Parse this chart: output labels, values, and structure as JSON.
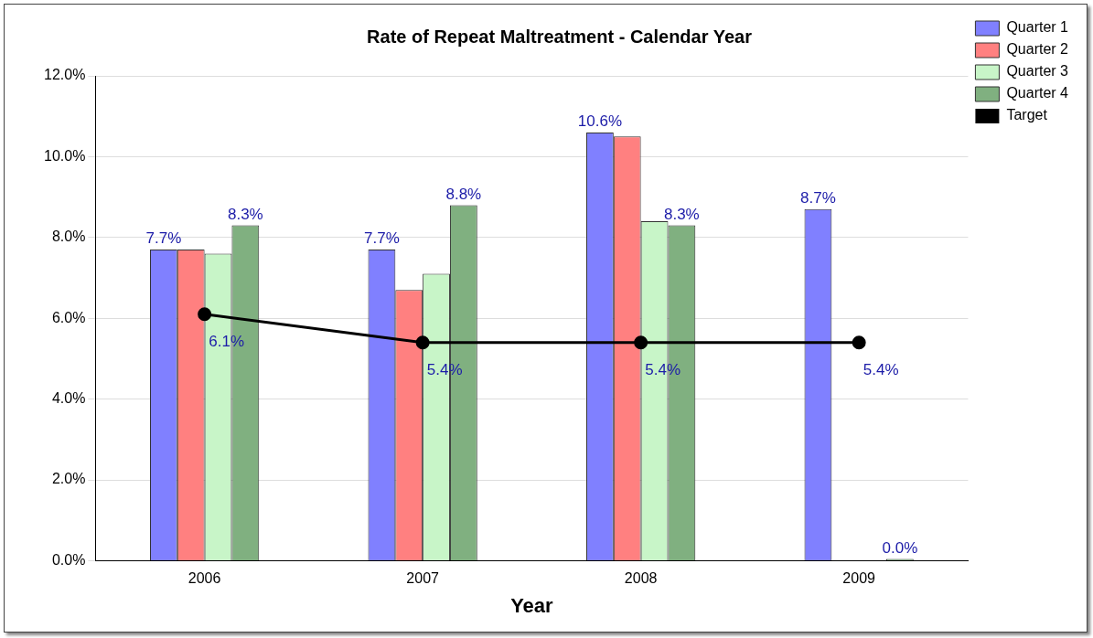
{
  "chart_data": {
    "type": "bar",
    "title": "Rate of Repeat Maltreatment - Calendar Year",
    "xlabel": "Year",
    "categories": [
      "2006",
      "2007",
      "2008",
      "2009"
    ],
    "series": [
      {
        "name": "Quarter 1",
        "color": "#8080ff",
        "values": [
          7.7,
          7.7,
          10.6,
          8.7
        ],
        "value_labels": [
          "7.7%",
          "7.7%",
          "10.6%",
          "8.7%"
        ]
      },
      {
        "name": "Quarter 2",
        "color": "#ff8080",
        "values": [
          7.7,
          6.7,
          10.5,
          null
        ],
        "value_labels": [
          null,
          null,
          null,
          null
        ]
      },
      {
        "name": "Quarter 3",
        "color": "#c8f5c8",
        "values": [
          7.6,
          7.1,
          8.4,
          null
        ],
        "value_labels": [
          null,
          null,
          null,
          null
        ]
      },
      {
        "name": "Quarter 4",
        "color": "#80b080",
        "values": [
          8.3,
          8.8,
          8.3,
          0
        ],
        "value_labels": [
          "8.3%",
          "8.8%",
          "8.3%",
          "0.0%"
        ]
      },
      {
        "name": "Target",
        "type": "line",
        "color": "#000000",
        "marker": "circle",
        "values": [
          6.1,
          5.4,
          5.4,
          5.4
        ],
        "value_labels": [
          "6.1%",
          "5.4%",
          "5.4%",
          "5.4%"
        ]
      }
    ],
    "ylim": [
      0,
      12
    ],
    "yticks": [
      {
        "value": 0,
        "label": "0.0%"
      },
      {
        "value": 2,
        "label": "2.0%"
      },
      {
        "value": 4,
        "label": "4.0%"
      },
      {
        "value": 6,
        "label": "6.0%"
      },
      {
        "value": 8,
        "label": "8.0%"
      },
      {
        "value": 10,
        "label": "10.0%"
      },
      {
        "value": 12,
        "label": "12.0%"
      }
    ],
    "grid": "y",
    "legend": "top right"
  }
}
